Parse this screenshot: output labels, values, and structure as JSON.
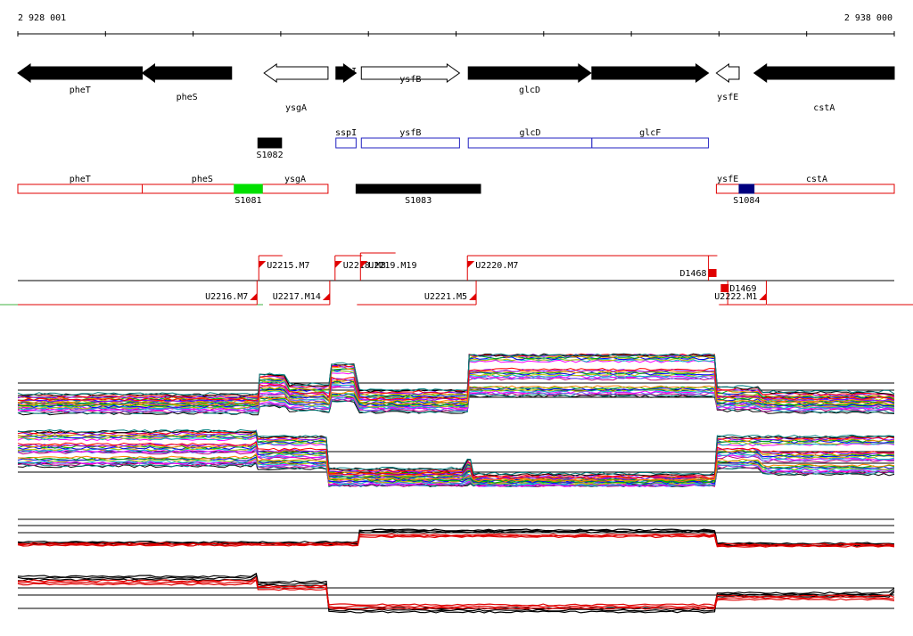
{
  "ruler": {
    "start_label": "2 928 001",
    "end_label": "2 938 000",
    "start": 2928001,
    "end": 2938000
  },
  "colors": {
    "gene": "#000000",
    "annot_red": "#e00000",
    "annot_blue": "#2020c0",
    "green": "#00e000",
    "navy": "#000080",
    "series_black": "#000000",
    "series_red": "#e00000"
  },
  "genes": [
    {
      "name": "pheT",
      "strand": "-",
      "fill": "black",
      "start": 2928001,
      "end": 2929420
    },
    {
      "name": "pheS",
      "strand": "-",
      "fill": "black",
      "start": 2929420,
      "end": 2930440
    },
    {
      "name": "ysgA",
      "strand": "-",
      "fill": "white",
      "start": 2930810,
      "end": 2931540
    },
    {
      "name": "sspI",
      "strand": "+",
      "fill": "black",
      "start": 2931630,
      "end": 2931860
    },
    {
      "name": "ysfB",
      "strand": "+",
      "fill": "white",
      "start": 2931920,
      "end": 2933040
    },
    {
      "name": "glcD",
      "strand": "+",
      "fill": "black",
      "start": 2933140,
      "end": 2934540
    },
    {
      "name": "glcF",
      "strand": "+",
      "fill": "black",
      "start": 2934550,
      "end": 2935880
    },
    {
      "name": "ysfE",
      "strand": "-",
      "fill": "white",
      "start": 2935970,
      "end": 2936230
    },
    {
      "name": "cstA",
      "strand": "-",
      "fill": "black",
      "start": 2936400,
      "end": 2938000
    }
  ],
  "s_blocks": [
    {
      "name": "S1082",
      "row": 1,
      "start": 2930740,
      "end": 2931010
    },
    {
      "name": "S1081",
      "row": 2,
      "start": 2930470,
      "end": 2930790
    },
    {
      "name": "S1083",
      "row": 2,
      "start": 2931860,
      "end": 2933280
    },
    {
      "name": "S1084",
      "row": 2,
      "start": 2936230,
      "end": 2936400
    }
  ],
  "annotation_blue": [
    {
      "name": "sspI",
      "start": 2931630,
      "end": 2931860
    },
    {
      "name": "ysfB",
      "start": 2931920,
      "end": 2933040
    },
    {
      "name": "glcD",
      "start": 2933140,
      "end": 2934550
    },
    {
      "name": "glcF",
      "start": 2934550,
      "end": 2935880
    }
  ],
  "annotation_red": [
    {
      "name": "pheT",
      "start": 2928001,
      "end": 2929420
    },
    {
      "name": "pheS",
      "start": 2929420,
      "end": 2930790
    },
    {
      "name": "ysgA",
      "start": 2930790,
      "end": 2931540
    },
    {
      "name": "ysfE",
      "start": 2935970,
      "end": 2936230
    },
    {
      "name": "cstA",
      "start": 2936230,
      "end": 2938000
    }
  ],
  "transcripts": [
    {
      "name": "U2215.M7",
      "side": "above",
      "start": 2930750,
      "end": 2931020
    },
    {
      "name": "U2216.M7",
      "side": "below",
      "start": 2928001,
      "end": 2930730
    },
    {
      "name": "U2217.M14",
      "side": "below",
      "start": 2930870,
      "end": 2931560
    },
    {
      "name": "U2218.M8",
      "side": "above",
      "start": 2931620,
      "end": 2931930
    },
    {
      "name": "U2219.M19",
      "side": "above",
      "start": 2931910,
      "end": 2932310
    },
    {
      "name": "U2220.M7",
      "side": "above",
      "start": 2933130,
      "end": 2935980
    },
    {
      "name": "U2221.M5",
      "side": "below",
      "start": 2931870,
      "end": 2933230
    },
    {
      "name": "D1468",
      "side": "above",
      "start": 2935880,
      "end": 2935980
    },
    {
      "name": "D1469",
      "side": "below",
      "start": 2936000,
      "end": 2936100
    },
    {
      "name": "U2222.M1",
      "side": "below",
      "start": 2936010,
      "end": 2936540
    }
  ],
  "chart_data": [
    {
      "type": "line",
      "panel": "expression-top-strand",
      "x": [
        2928001,
        2930740,
        2930760,
        2931100,
        2931550,
        2931580,
        2931900,
        2933130,
        2933150,
        2935950,
        2935980,
        2936500,
        2938000
      ],
      "series": [
        {
          "values": [
            0.28,
            0.28,
            0.62,
            0.45,
            0.45,
            0.8,
            0.35,
            0.35,
            1.0,
            1.0,
            0.4,
            0.32,
            0.28
          ]
        },
        {
          "values": [
            0.18,
            0.18,
            0.42,
            0.3,
            0.22,
            0.55,
            0.2,
            0.2,
            0.7,
            0.7,
            0.25,
            0.2,
            0.18
          ]
        },
        {
          "values": [
            0.1,
            0.1,
            0.22,
            0.15,
            0.12,
            0.3,
            0.12,
            0.12,
            0.4,
            0.4,
            0.15,
            0.12,
            0.1
          ]
        }
      ]
    },
    {
      "type": "line",
      "panel": "expression-bottom-strand",
      "x": [
        2928001,
        2930720,
        2930740,
        2931520,
        2931550,
        2933130,
        2933200,
        2935950,
        2935980,
        2936500,
        2938000
      ],
      "series": [
        {
          "values": [
            0.95,
            1.0,
            0.85,
            0.85,
            0.25,
            0.4,
            0.15,
            0.15,
            0.85,
            0.85,
            0.85
          ]
        },
        {
          "values": [
            0.7,
            0.75,
            0.6,
            0.6,
            0.15,
            0.25,
            0.08,
            0.08,
            0.62,
            0.55,
            0.55
          ]
        },
        {
          "values": [
            0.45,
            0.5,
            0.4,
            0.4,
            0.05,
            0.1,
            0.02,
            0.02,
            0.4,
            0.3,
            0.3
          ]
        }
      ]
    },
    {
      "type": "line",
      "panel": "summary-top",
      "x": [
        2928001,
        2931880,
        2931900,
        2935950,
        2935980,
        2938000
      ],
      "series": [
        {
          "color": "black",
          "values": [
            0.2,
            0.2,
            0.7,
            0.7,
            0.15,
            0.12
          ]
        },
        {
          "color": "red",
          "values": [
            0.14,
            0.14,
            0.5,
            0.5,
            0.1,
            0.08
          ]
        }
      ]
    },
    {
      "type": "line",
      "panel": "summary-bottom",
      "x": [
        2928001,
        2930720,
        2930740,
        2931520,
        2931550,
        2935950,
        2935980,
        2938000
      ],
      "series": [
        {
          "color": "black",
          "values": [
            0.82,
            0.9,
            0.7,
            0.7,
            0.1,
            0.1,
            0.45,
            0.55
          ]
        },
        {
          "color": "red",
          "values": [
            0.72,
            0.8,
            0.6,
            0.6,
            0.18,
            0.18,
            0.38,
            0.35
          ]
        }
      ]
    }
  ]
}
